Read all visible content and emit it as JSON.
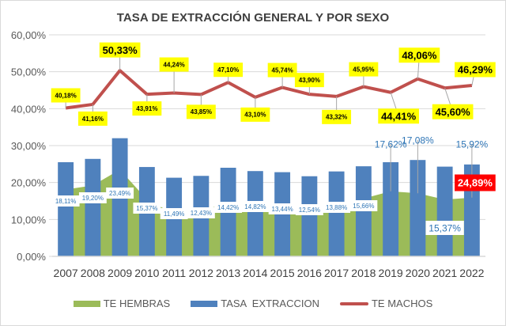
{
  "chart_data": {
    "type": "bar",
    "title": "TASA DE EXTRACCIÓN GENERAL Y POR SEXO",
    "xlabel": "",
    "ylabel": "",
    "ylim": [
      0,
      60
    ],
    "y_ticks": [
      "0,00%",
      "10,00%",
      "20,00%",
      "30,00%",
      "40,00%",
      "50,00%",
      "60,00%"
    ],
    "grid": true,
    "legend_position": "bottom",
    "categories": [
      "2007",
      "2008",
      "2009",
      "2010",
      "2011",
      "2012",
      "2013",
      "2014",
      "2015",
      "2016",
      "2017",
      "2018",
      "2019",
      "2020",
      "2021",
      "2022"
    ],
    "series": [
      {
        "name": "TE HEMBRAS",
        "type": "area",
        "color": "#9bbb59",
        "values": [
          18.11,
          19.2,
          23.49,
          15.37,
          11.49,
          12.43,
          14.42,
          14.82,
          13.44,
          12.54,
          13.88,
          15.66,
          17.62,
          17.08,
          15.37,
          15.92
        ],
        "labels": [
          "18,11%",
          "19,20%",
          "23,49%",
          "15,37%",
          "11,49%",
          "12,43%",
          "14,42%",
          "14,82%",
          "13,44%",
          "12,54%",
          "13,88%",
          "15,66%",
          "17,62%",
          "17,08%",
          "15,37%",
          "15,92%"
        ]
      },
      {
        "name": "TASA  EXTRACCION",
        "type": "bar",
        "color": "#4f81bd",
        "values": [
          25.5,
          26.4,
          32.0,
          24.2,
          21.3,
          21.8,
          24.0,
          23.1,
          22.8,
          21.7,
          23.0,
          24.4,
          25.5,
          26.1,
          24.3,
          24.89
        ],
        "labels": [
          "",
          "",
          "",
          "",
          "",
          "",
          "",
          "",
          "",
          "",
          "",
          "",
          "",
          "",
          "",
          "24,89%"
        ]
      },
      {
        "name": "TE MACHOS",
        "type": "line",
        "color": "#c0504d",
        "values": [
          40.18,
          41.16,
          50.33,
          43.91,
          44.24,
          43.85,
          47.1,
          43.1,
          45.74,
          43.9,
          43.32,
          45.95,
          44.41,
          48.06,
          45.6,
          46.29
        ],
        "labels": [
          "40,18%",
          "41,16%",
          "50,33%",
          "43,91%",
          "44,24%",
          "43,85%",
          "47,10%",
          "43,10%",
          "45,74%",
          "43,90%",
          "43,32%",
          "45,95%",
          "44,41%",
          "48,06%",
          "45,60%",
          "46,29%"
        ]
      }
    ],
    "label_colors": {
      "machos_label_bg": "#ffff00",
      "hembras_label_text": "#2e75b6",
      "highlight_label_bg": "#ff0000"
    }
  },
  "legend": {
    "items": [
      {
        "label": "TE HEMBRAS",
        "color": "#9bbb59"
      },
      {
        "label": "TASA  EXTRACCION",
        "color": "#4f81bd"
      },
      {
        "label": "TE MACHOS",
        "color": "#c0504d"
      }
    ]
  }
}
